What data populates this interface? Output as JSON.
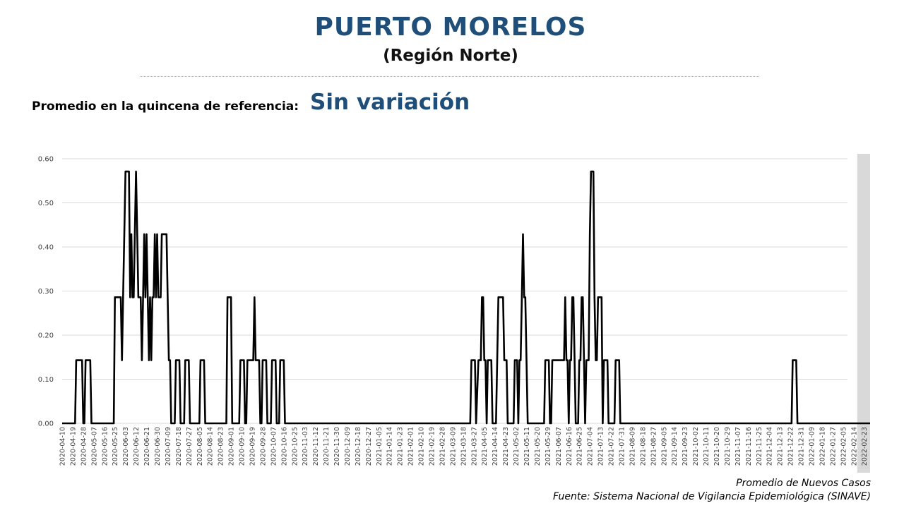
{
  "header": {
    "title": "PUERTO MORELOS",
    "subtitle": "(Región Norte)",
    "reference_label": "Promedio en la quincena de referencia:",
    "reference_value": "Sin variación"
  },
  "footer": {
    "series_caption": "Promedio de Nuevos Casos",
    "source": "Fuente: Sistema Nacional de Vigilancia Epidemiológica (SINAVE)"
  },
  "colors": {
    "title": "#1f4e79",
    "line": "#000000",
    "grid": "#d9d9d9",
    "shaded_period": "#d9d9d9"
  },
  "chart_data": {
    "type": "line",
    "title": "",
    "xlabel": "",
    "ylabel": "",
    "ylim": [
      0,
      0.6
    ],
    "yticks": [
      "0.00",
      "0.10",
      "0.20",
      "0.30",
      "0.40",
      "0.50",
      "0.60"
    ],
    "grid": true,
    "shaded_range": [
      "2022-02-17",
      "2022-02-28"
    ],
    "x_range": [
      "2020-04-10",
      "2022-02-28"
    ],
    "xticks": [
      "2020-04-10",
      "2020-04-19",
      "2020-04-28",
      "2020-05-07",
      "2020-05-16",
      "2020-05-25",
      "2020-06-03",
      "2020-06-12",
      "2020-06-21",
      "2020-06-30",
      "2020-07-09",
      "2020-07-18",
      "2020-07-27",
      "2020-08-05",
      "2020-08-14",
      "2020-08-23",
      "2020-09-01",
      "2020-09-10",
      "2020-09-19",
      "2020-09-28",
      "2020-10-07",
      "2020-10-16",
      "2020-10-25",
      "2020-11-03",
      "2020-11-12",
      "2020-11-21",
      "2020-11-30",
      "2020-12-09",
      "2020-12-18",
      "2020-12-27",
      "2021-01-05",
      "2021-01-14",
      "2021-01-23",
      "2021-02-01",
      "2021-02-10",
      "2021-02-19",
      "2021-02-28",
      "2021-03-09",
      "2021-03-18",
      "2021-03-27",
      "2021-04-05",
      "2021-04-14",
      "2021-04-23",
      "2021-05-02",
      "2021-05-11",
      "2021-05-20",
      "2021-05-29",
      "2021-06-07",
      "2021-06-16",
      "2021-06-25",
      "2021-07-04",
      "2021-07-13",
      "2021-07-22",
      "2021-07-31",
      "2021-08-09",
      "2021-08-18",
      "2021-08-27",
      "2021-09-05",
      "2021-09-14",
      "2021-09-23",
      "2021-10-02",
      "2021-10-11",
      "2021-10-20",
      "2021-10-29",
      "2021-11-07",
      "2021-11-16",
      "2021-11-25",
      "2021-12-04",
      "2021-12-13",
      "2021-12-22",
      "2021-12-31",
      "2022-01-09",
      "2022-01-18",
      "2022-01-27",
      "2022-02-05",
      "2022-02-14",
      "2022-02-23"
    ],
    "series": [
      {
        "points": [
          [
            "2020-04-10",
            0
          ],
          [
            "2020-04-21",
            0
          ],
          [
            "2020-04-22",
            0.143
          ],
          [
            "2020-04-27",
            0.143
          ],
          [
            "2020-04-28",
            0
          ],
          [
            "2020-04-29",
            0
          ],
          [
            "2020-04-30",
            0.143
          ],
          [
            "2020-05-04",
            0.143
          ],
          [
            "2020-05-05",
            0
          ],
          [
            "2020-05-24",
            0
          ],
          [
            "2020-05-25",
            0.286
          ],
          [
            "2020-05-30",
            0.286
          ],
          [
            "2020-05-31",
            0.143
          ],
          [
            "2020-06-01",
            0.286
          ],
          [
            "2020-06-02",
            0.429
          ],
          [
            "2020-06-03",
            0.571
          ],
          [
            "2020-06-06",
            0.571
          ],
          [
            "2020-06-07",
            0.286
          ],
          [
            "2020-06-08",
            0.429
          ],
          [
            "2020-06-09",
            0.286
          ],
          [
            "2020-06-10",
            0.286
          ],
          [
            "2020-06-11",
            0.429
          ],
          [
            "2020-06-12",
            0.571
          ],
          [
            "2020-06-13",
            0.429
          ],
          [
            "2020-06-14",
            0.286
          ],
          [
            "2020-06-16",
            0.286
          ],
          [
            "2020-06-17",
            0.143
          ],
          [
            "2020-06-18",
            0.286
          ],
          [
            "2020-06-19",
            0.429
          ],
          [
            "2020-06-20",
            0.286
          ],
          [
            "2020-06-21",
            0.429
          ],
          [
            "2020-06-22",
            0.286
          ],
          [
            "2020-06-23",
            0.143
          ],
          [
            "2020-06-24",
            0.286
          ],
          [
            "2020-06-25",
            0.143
          ],
          [
            "2020-06-26",
            0.286
          ],
          [
            "2020-06-27",
            0.286
          ],
          [
            "2020-06-28",
            0.429
          ],
          [
            "2020-06-29",
            0.286
          ],
          [
            "2020-06-30",
            0.429
          ],
          [
            "2020-07-01",
            0.286
          ],
          [
            "2020-07-03",
            0.286
          ],
          [
            "2020-07-04",
            0.429
          ],
          [
            "2020-07-08",
            0.429
          ],
          [
            "2020-07-09",
            0.286
          ],
          [
            "2020-07-10",
            0.143
          ],
          [
            "2020-07-11",
            0.143
          ],
          [
            "2020-07-12",
            0
          ],
          [
            "2020-07-15",
            0
          ],
          [
            "2020-07-16",
            0.143
          ],
          [
            "2020-07-19",
            0.143
          ],
          [
            "2020-07-20",
            0
          ],
          [
            "2020-07-23",
            0
          ],
          [
            "2020-07-24",
            0.143
          ],
          [
            "2020-07-27",
            0.143
          ],
          [
            "2020-07-28",
            0
          ],
          [
            "2020-08-05",
            0
          ],
          [
            "2020-08-06",
            0.143
          ],
          [
            "2020-08-09",
            0.143
          ],
          [
            "2020-08-10",
            0
          ],
          [
            "2020-08-28",
            0
          ],
          [
            "2020-08-29",
            0.286
          ],
          [
            "2020-09-01",
            0.286
          ],
          [
            "2020-09-02",
            0
          ],
          [
            "2020-09-08",
            0
          ],
          [
            "2020-09-09",
            0.143
          ],
          [
            "2020-09-12",
            0.143
          ],
          [
            "2020-09-13",
            0
          ],
          [
            "2020-09-14",
            0
          ],
          [
            "2020-09-15",
            0.143
          ],
          [
            "2020-09-20",
            0.143
          ],
          [
            "2020-09-21",
            0.286
          ],
          [
            "2020-09-22",
            0.143
          ],
          [
            "2020-09-25",
            0.143
          ],
          [
            "2020-09-26",
            0
          ],
          [
            "2020-09-27",
            0
          ],
          [
            "2020-09-28",
            0.143
          ],
          [
            "2020-10-01",
            0.143
          ],
          [
            "2020-10-02",
            0
          ],
          [
            "2020-10-05",
            0
          ],
          [
            "2020-10-06",
            0.143
          ],
          [
            "2020-10-09",
            0.143
          ],
          [
            "2020-10-10",
            0
          ],
          [
            "2020-10-12",
            0
          ],
          [
            "2020-10-13",
            0.143
          ],
          [
            "2020-10-16",
            0.143
          ],
          [
            "2020-10-17",
            0
          ],
          [
            "2021-03-24",
            0
          ],
          [
            "2021-03-25",
            0.143
          ],
          [
            "2021-03-28",
            0.143
          ],
          [
            "2021-03-29",
            0
          ],
          [
            "2021-03-31",
            0.143
          ],
          [
            "2021-04-02",
            0.143
          ],
          [
            "2021-04-03",
            0.286
          ],
          [
            "2021-04-04",
            0.286
          ],
          [
            "2021-04-05",
            0.143
          ],
          [
            "2021-04-06",
            0.143
          ],
          [
            "2021-04-07",
            0
          ],
          [
            "2021-04-08",
            0.143
          ],
          [
            "2021-04-11",
            0.143
          ],
          [
            "2021-04-12",
            0
          ],
          [
            "2021-04-15",
            0
          ],
          [
            "2021-04-16",
            0.143
          ],
          [
            "2021-04-17",
            0.286
          ],
          [
            "2021-04-21",
            0.286
          ],
          [
            "2021-04-22",
            0.143
          ],
          [
            "2021-04-24",
            0.143
          ],
          [
            "2021-04-25",
            0
          ],
          [
            "2021-04-30",
            0
          ],
          [
            "2021-05-01",
            0.143
          ],
          [
            "2021-05-03",
            0.143
          ],
          [
            "2021-05-04",
            0
          ],
          [
            "2021-05-05",
            0.143
          ],
          [
            "2021-05-06",
            0.143
          ],
          [
            "2021-05-07",
            0.286
          ],
          [
            "2021-05-08",
            0.429
          ],
          [
            "2021-05-09",
            0.286
          ],
          [
            "2021-05-10",
            0.286
          ],
          [
            "2021-05-11",
            0.143
          ],
          [
            "2021-05-12",
            0
          ],
          [
            "2021-05-26",
            0
          ],
          [
            "2021-05-27",
            0.143
          ],
          [
            "2021-05-30",
            0.143
          ],
          [
            "2021-05-31",
            0
          ],
          [
            "2021-06-01",
            0
          ],
          [
            "2021-06-02",
            0.143
          ],
          [
            "2021-06-12",
            0.143
          ],
          [
            "2021-06-13",
            0.286
          ],
          [
            "2021-06-14",
            0.143
          ],
          [
            "2021-06-15",
            0.143
          ],
          [
            "2021-06-16",
            0
          ],
          [
            "2021-06-17",
            0.143
          ],
          [
            "2021-06-18",
            0.143
          ],
          [
            "2021-06-19",
            0.286
          ],
          [
            "2021-06-20",
            0.286
          ],
          [
            "2021-06-21",
            0.143
          ],
          [
            "2021-06-22",
            0
          ],
          [
            "2021-06-24",
            0
          ],
          [
            "2021-06-25",
            0.143
          ],
          [
            "2021-06-26",
            0.143
          ],
          [
            "2021-06-27",
            0.286
          ],
          [
            "2021-06-28",
            0.286
          ],
          [
            "2021-06-29",
            0.143
          ],
          [
            "2021-06-30",
            0
          ],
          [
            "2021-07-01",
            0.143
          ],
          [
            "2021-07-03",
            0.143
          ],
          [
            "2021-07-04",
            0.429
          ],
          [
            "2021-07-05",
            0.571
          ],
          [
            "2021-07-07",
            0.571
          ],
          [
            "2021-07-08",
            0.286
          ],
          [
            "2021-07-09",
            0.143
          ],
          [
            "2021-07-10",
            0.143
          ],
          [
            "2021-07-11",
            0.286
          ],
          [
            "2021-07-14",
            0.286
          ],
          [
            "2021-07-15",
            0
          ],
          [
            "2021-07-16",
            0.143
          ],
          [
            "2021-07-19",
            0.143
          ],
          [
            "2021-07-20",
            0
          ],
          [
            "2021-07-25",
            0
          ],
          [
            "2021-07-26",
            0.143
          ],
          [
            "2021-07-29",
            0.143
          ],
          [
            "2021-07-30",
            0
          ],
          [
            "2021-12-23",
            0
          ],
          [
            "2021-12-24",
            0.143
          ],
          [
            "2021-12-27",
            0.143
          ],
          [
            "2021-12-28",
            0
          ],
          [
            "2022-02-28",
            0
          ]
        ]
      }
    ]
  }
}
